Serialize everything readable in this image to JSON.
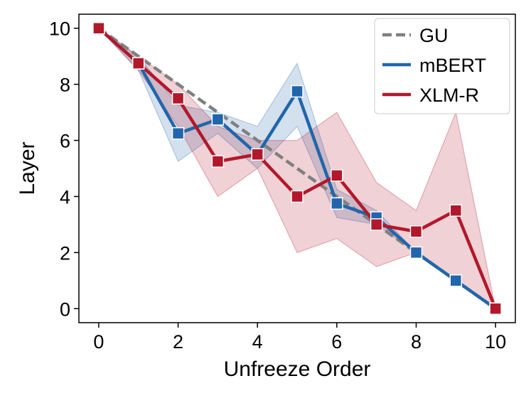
{
  "chart_data": {
    "type": "line",
    "title": "",
    "xlabel": "Unfreeze Order",
    "ylabel": "Layer",
    "xlim": [
      -0.5,
      10.5
    ],
    "ylim": [
      -0.5,
      10.5
    ],
    "xticks": [
      0,
      2,
      4,
      6,
      8,
      10
    ],
    "yticks": [
      0,
      2,
      4,
      6,
      8,
      10
    ],
    "legend_position": "top-right",
    "x": [
      0,
      1,
      2,
      3,
      4,
      5,
      6,
      7,
      8,
      9,
      10
    ],
    "series": [
      {
        "name": "GU",
        "color": "#808080",
        "style": "dashed",
        "values": [
          10,
          9,
          8,
          7,
          6,
          5,
          4,
          3,
          2,
          1,
          0
        ]
      },
      {
        "name": "mBERT",
        "color": "#2166ac",
        "style": "solid",
        "marker": "square",
        "values": [
          10,
          8.75,
          6.25,
          6.75,
          5.5,
          7.75,
          3.75,
          3.25,
          2,
          1,
          0
        ],
        "band_low": [
          10,
          8.5,
          5.25,
          6.25,
          5,
          6.5,
          3.25,
          3,
          2,
          1,
          0
        ],
        "band_high": [
          10,
          9,
          7.25,
          7,
          6.5,
          8.75,
          4.25,
          3.5,
          2,
          1,
          0
        ]
      },
      {
        "name": "XLM-R",
        "color": "#b2182b",
        "style": "solid",
        "marker": "square",
        "values": [
          10,
          8.75,
          7.5,
          5.25,
          5.5,
          4,
          4.75,
          3,
          2.75,
          3.5,
          0
        ],
        "band_low": [
          10,
          8.5,
          6.5,
          4,
          5,
          2,
          2.5,
          1.5,
          2,
          1,
          0
        ],
        "band_high": [
          10,
          9,
          8,
          6.5,
          6,
          6,
          7,
          4.5,
          3.5,
          7,
          0
        ]
      }
    ]
  }
}
